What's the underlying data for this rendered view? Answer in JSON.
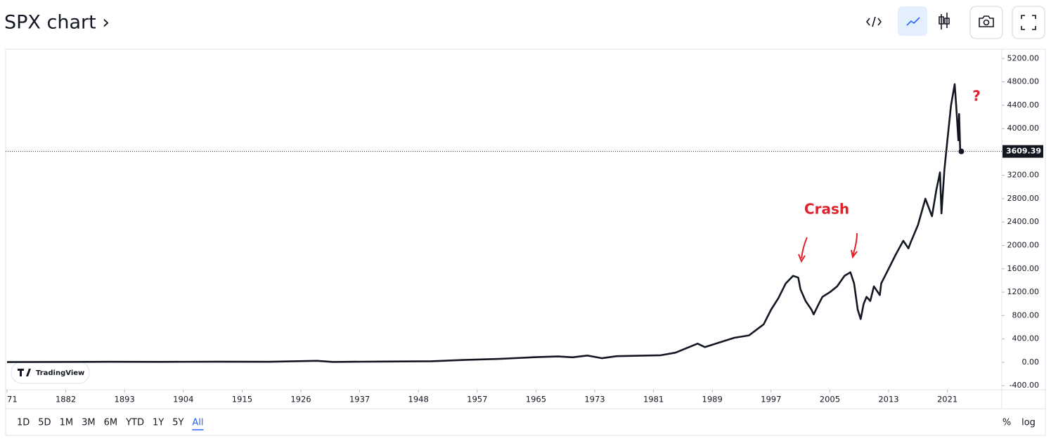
{
  "header": {
    "title": "SPX chart ›"
  },
  "range_bar": {
    "buttons": [
      {
        "label": "1D"
      },
      {
        "label": "5D"
      },
      {
        "label": "1M"
      },
      {
        "label": "3M"
      },
      {
        "label": "6M"
      },
      {
        "label": "YTD"
      },
      {
        "label": "1Y"
      },
      {
        "label": "5Y"
      },
      {
        "label": "All",
        "active": true
      }
    ],
    "scale_options": [
      "%",
      "log"
    ]
  },
  "chart_data": {
    "type": "line",
    "watermark": "TradingView",
    "annotations": [
      "Crash",
      "?"
    ],
    "x": [
      1871,
      1880,
      1890,
      1900,
      1910,
      1920,
      1929,
      1932,
      1940,
      1950,
      1955,
      1960,
      1965,
      1968,
      1970,
      1972,
      1974,
      1976,
      1980,
      1982,
      1984,
      1987,
      1988,
      1990,
      1992,
      1994,
      1996,
      1997,
      1998,
      1999,
      2000,
      2000.7,
      2001,
      2001.7,
      2002.5,
      2002.8,
      2003.5,
      2004,
      2005,
      2006,
      2007,
      2007.8,
      2008.3,
      2008.8,
      2009.2,
      2009.6,
      2010,
      2010.5,
      2011,
      2011.8,
      2012,
      2013,
      2014,
      2015,
      2015.7,
      2016,
      2017,
      2018,
      2018.9,
      2019.5,
      2020,
      2020.2,
      2020.6,
      2021,
      2021.5,
      2022,
      2022.2,
      2022.5,
      2022.6,
      2022.75,
      2022.9
    ],
    "series": [
      {
        "name": "SPX",
        "color": "#131722",
        "values": [
          4,
          6,
          8,
          7,
          10,
          8,
          25,
          6,
          12,
          18,
          40,
          58,
          88,
          100,
          85,
          115,
          70,
          105,
          115,
          120,
          165,
          320,
          260,
          340,
          420,
          460,
          650,
          900,
          1100,
          1350,
          1480,
          1450,
          1250,
          1050,
          900,
          820,
          1000,
          1120,
          1200,
          1300,
          1480,
          1540,
          1350,
          900,
          740,
          1000,
          1120,
          1050,
          1300,
          1150,
          1350,
          1600,
          1850,
          2080,
          1950,
          2050,
          2350,
          2800,
          2500,
          2950,
          3250,
          2550,
          3300,
          3800,
          4400,
          4760,
          4400,
          3800,
          4250,
          3600,
          3609.39
        ]
      }
    ],
    "xlim": [
      1871,
      2028
    ],
    "xticks": [
      {
        "value": 1871,
        "label": "71"
      },
      1882,
      1893,
      1904,
      1915,
      1926,
      1937,
      1948,
      1957,
      1965,
      1973,
      1981,
      1989,
      1997,
      2005,
      2013,
      2021
    ],
    "ylim": [
      -470,
      5360
    ],
    "yticks": [
      {
        "value": -400,
        "label": "-400.00"
      },
      {
        "value": 0,
        "label": "0.00"
      },
      {
        "value": 400,
        "label": "400.00"
      },
      {
        "value": 800,
        "label": "800.00"
      },
      {
        "value": 1200,
        "label": "1200.00"
      },
      {
        "value": 1600,
        "label": "1600.00"
      },
      {
        "value": 2000,
        "label": "2000.00"
      },
      {
        "value": 2400,
        "label": "2400.00"
      },
      {
        "value": 2800,
        "label": "2800.00"
      },
      {
        "value": 3200,
        "label": "3200.00"
      },
      {
        "value": 4000,
        "label": "4000.00"
      },
      {
        "value": 4400,
        "label": "4400.00"
      },
      {
        "value": 4800,
        "label": "4800.00"
      },
      {
        "value": 5200,
        "label": "5200.00"
      }
    ],
    "grid": false
  }
}
